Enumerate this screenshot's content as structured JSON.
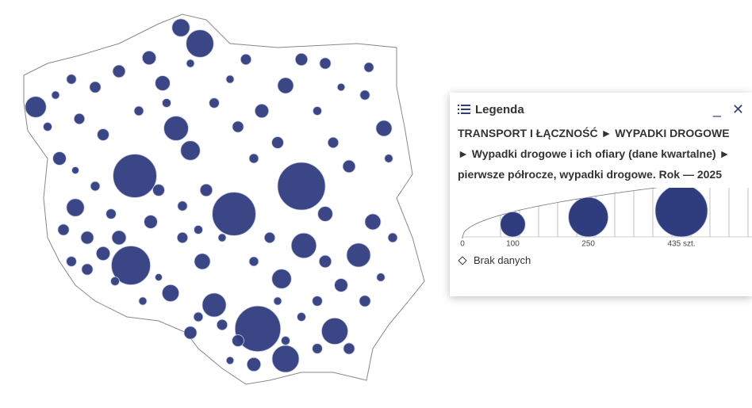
{
  "legend": {
    "title": "Legenda",
    "heading": "TRANSPORT I ŁĄCZNOŚĆ ► WYPADKI DROGOWE ► Wypadki drogowe i ich ofiary (dane kwartalne) ► pierwsze półrocze, wypadki drogowe. Rok — 2025",
    "scale": [
      0,
      100,
      250,
      {
        "value": 435,
        "label": "435 szt."
      }
    ],
    "no_data": "Brak danych"
  },
  "map": {
    "values": [
      360,
      300,
      300,
      330,
      240,
      120,
      50,
      90,
      95,
      110,
      90,
      70,
      60,
      40,
      40,
      45,
      50,
      115,
      100,
      40,
      60,
      35,
      30,
      25,
      20,
      15,
      10,
      12,
      18,
      22,
      28,
      8,
      14,
      16,
      20,
      26,
      30,
      12,
      10,
      8,
      18,
      24,
      14,
      20,
      16,
      10,
      30,
      22,
      12,
      9,
      15,
      18,
      25,
      35,
      40,
      14,
      11,
      20,
      28,
      16,
      12,
      10,
      22,
      18,
      14,
      26,
      30,
      9,
      12,
      16,
      20,
      24,
      18,
      14,
      10,
      12,
      15,
      22,
      28,
      32,
      20,
      16,
      14,
      12,
      10,
      18,
      24,
      20,
      15,
      11
    ]
  }
}
